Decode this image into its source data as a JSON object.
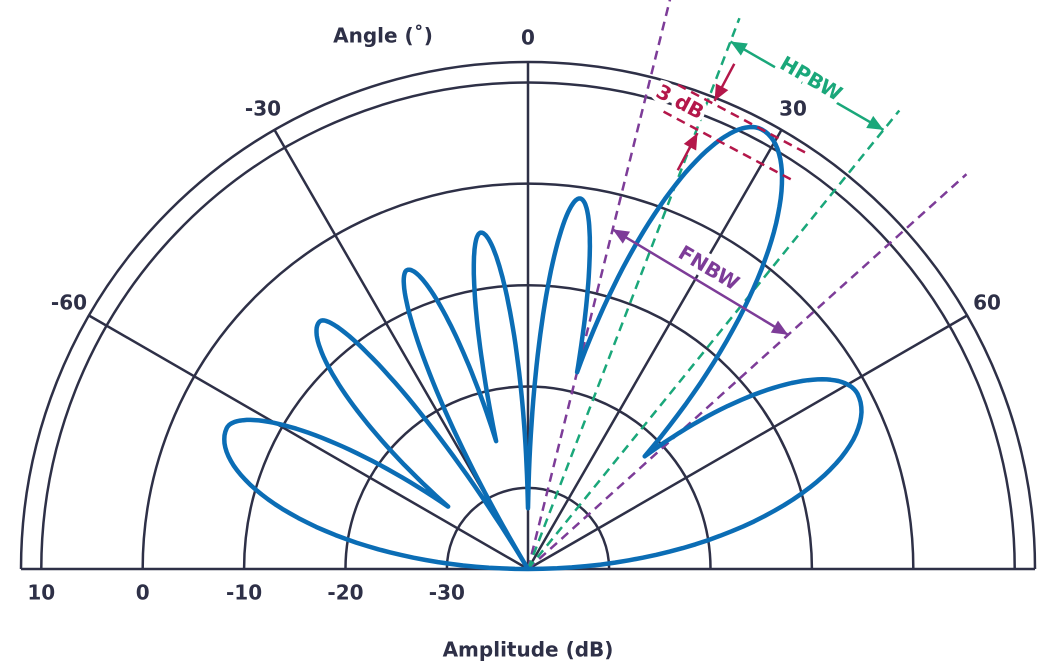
{
  "chart_data": {
    "type": "polar",
    "angle_label": "Angle (˚)",
    "r_label": "Amplitude (dB)",
    "rlim": [
      -38,
      12
    ],
    "rticks": [
      -30,
      -20,
      -10,
      0,
      10
    ],
    "thetalim": [
      -90,
      90
    ],
    "thetaticks": [
      -60,
      -30,
      0,
      30,
      60
    ],
    "grid": true,
    "series": [
      {
        "color": "#0b6db5",
        "theta": [
          -90,
          -65,
          -52,
          -40,
          -31,
          -22,
          -14,
          -8,
          0,
          8,
          14,
          28,
          46,
          62,
          90
        ],
        "values": [
          -38,
          -5.2,
          -28,
          -6.1,
          -38,
          -6.2,
          -25,
          -4.5,
          -32,
          -1.1,
          -18,
          11.1,
          -22,
          -1.2,
          -38
        ]
      }
    ],
    "annotations": {
      "fnbw": {
        "label": "FNBW",
        "theta": [
          14,
          48
        ],
        "color": "#7d3c98"
      },
      "hpbw": {
        "label": "HPBW",
        "theta": [
          21,
          39
        ],
        "color": "#1aa77a"
      },
      "drop": {
        "label": "3 dB",
        "value": 3,
        "color": "#b4174a"
      }
    }
  }
}
